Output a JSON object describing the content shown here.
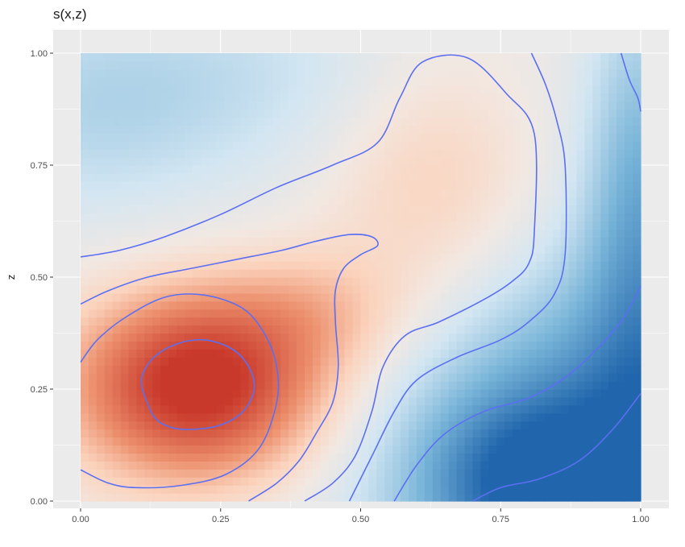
{
  "chart_data": {
    "type": "heatmap",
    "title": "s(x,z)",
    "xlabel": "",
    "ylabel": "z",
    "xlim": [
      0,
      1
    ],
    "ylim": [
      0,
      1
    ],
    "x_ticks": [
      "0.00",
      "0.25",
      "0.50",
      "0.75",
      "1.00"
    ],
    "y_ticks": [
      "0.00",
      "0.25",
      "0.50",
      "0.75",
      "1.00"
    ],
    "grid": true,
    "legend": "none",
    "colors": {
      "panel_background": "#ebebeb",
      "gridline": "#ffffff",
      "contour": "#5b6ff2",
      "high": "#c9392b",
      "mid": "#f2e8e2",
      "low": "#2166ac"
    },
    "contours": [
      [
        [
          0.11,
          0.25
        ],
        [
          0.13,
          0.19
        ],
        [
          0.16,
          0.165
        ],
        [
          0.2,
          0.16
        ],
        [
          0.25,
          0.17
        ],
        [
          0.29,
          0.2
        ],
        [
          0.31,
          0.25
        ],
        [
          0.3,
          0.3
        ],
        [
          0.27,
          0.34
        ],
        [
          0.22,
          0.36
        ],
        [
          0.17,
          0.35
        ],
        [
          0.13,
          0.32
        ],
        [
          0.11,
          0.28
        ],
        [
          0.11,
          0.25
        ]
      ],
      [
        [
          0.0,
          0.07
        ],
        [
          0.05,
          0.04
        ],
        [
          0.1,
          0.03
        ],
        [
          0.18,
          0.035
        ],
        [
          0.26,
          0.06
        ],
        [
          0.32,
          0.12
        ],
        [
          0.35,
          0.22
        ],
        [
          0.35,
          0.3
        ],
        [
          0.33,
          0.37
        ],
        [
          0.29,
          0.43
        ],
        [
          0.22,
          0.46
        ],
        [
          0.15,
          0.455
        ],
        [
          0.08,
          0.41
        ],
        [
          0.03,
          0.36
        ],
        [
          0.0,
          0.31
        ]
      ],
      [
        [
          0.0,
          0.44
        ],
        [
          0.05,
          0.47
        ],
        [
          0.12,
          0.5
        ],
        [
          0.2,
          0.52
        ],
        [
          0.28,
          0.54
        ],
        [
          0.36,
          0.56
        ],
        [
          0.42,
          0.58
        ],
        [
          0.48,
          0.595
        ],
        [
          0.52,
          0.59
        ],
        [
          0.53,
          0.57
        ],
        [
          0.5,
          0.55
        ],
        [
          0.47,
          0.52
        ],
        [
          0.455,
          0.47
        ],
        [
          0.455,
          0.4
        ],
        [
          0.46,
          0.3
        ],
        [
          0.45,
          0.22
        ],
        [
          0.42,
          0.15
        ],
        [
          0.39,
          0.09
        ],
        [
          0.35,
          0.04
        ],
        [
          0.3,
          0.0
        ]
      ],
      [
        [
          0.0,
          0.545
        ],
        [
          0.07,
          0.56
        ],
        [
          0.15,
          0.59
        ],
        [
          0.25,
          0.64
        ],
        [
          0.35,
          0.7
        ],
        [
          0.45,
          0.75
        ],
        [
          0.53,
          0.8
        ],
        [
          0.57,
          0.9
        ],
        [
          0.61,
          0.98
        ],
        [
          0.69,
          0.99
        ],
        [
          0.76,
          0.91
        ],
        [
          0.81,
          0.82
        ],
        [
          0.81,
          0.6
        ],
        [
          0.8,
          0.53
        ],
        [
          0.77,
          0.49
        ],
        [
          0.72,
          0.45
        ],
        [
          0.64,
          0.4
        ],
        [
          0.58,
          0.37
        ],
        [
          0.54,
          0.3
        ],
        [
          0.52,
          0.2
        ],
        [
          0.49,
          0.1
        ],
        [
          0.45,
          0.04
        ],
        [
          0.4,
          0.0
        ]
      ],
      [
        [
          0.48,
          0.0
        ],
        [
          0.52,
          0.1
        ],
        [
          0.56,
          0.2
        ],
        [
          0.6,
          0.27
        ],
        [
          0.67,
          0.32
        ],
        [
          0.75,
          0.36
        ],
        [
          0.8,
          0.4
        ],
        [
          0.845,
          0.46
        ],
        [
          0.865,
          0.55
        ],
        [
          0.865,
          0.75
        ],
        [
          0.85,
          0.85
        ],
        [
          0.83,
          0.93
        ],
        [
          0.805,
          1.0
        ]
      ],
      [
        [
          0.56,
          0.0
        ],
        [
          0.6,
          0.08
        ],
        [
          0.65,
          0.15
        ],
        [
          0.72,
          0.2
        ],
        [
          0.8,
          0.23
        ],
        [
          0.87,
          0.28
        ],
        [
          0.93,
          0.35
        ],
        [
          0.97,
          0.41
        ],
        [
          1.0,
          0.48
        ]
      ],
      [
        [
          0.7,
          0.0
        ],
        [
          0.75,
          0.03
        ],
        [
          0.82,
          0.05
        ],
        [
          0.89,
          0.09
        ],
        [
          0.95,
          0.16
        ],
        [
          1.0,
          0.24
        ]
      ],
      [
        [
          0.965,
          1.0
        ],
        [
          0.98,
          0.94
        ],
        [
          0.995,
          0.9
        ],
        [
          1.0,
          0.87
        ]
      ]
    ]
  }
}
